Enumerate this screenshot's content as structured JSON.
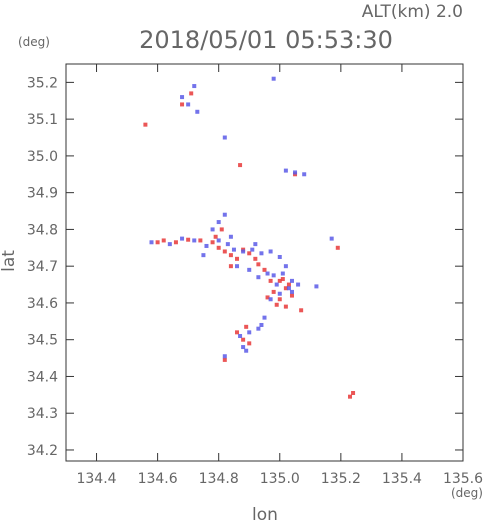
{
  "chart_data": {
    "type": "scatter",
    "title": "2018/05/01 05:53:30",
    "subtitle": "ALT(km) 2.0",
    "xlabel": "lon",
    "ylabel": "lat",
    "xunit": "(deg)",
    "yunit": "(deg)",
    "xlim": [
      134.3,
      135.6
    ],
    "ylim": [
      34.17,
      35.25
    ],
    "xticks": [
      "134.4",
      "134.6",
      "134.8",
      "135.0",
      "135.2",
      "135.4",
      "135.6"
    ],
    "yticks": [
      "34.2",
      "34.3",
      "34.4",
      "34.5",
      "34.6",
      "34.7",
      "34.8",
      "34.9",
      "35.0",
      "35.1",
      "35.2"
    ],
    "grid": false,
    "series": [
      {
        "color": "#e83838",
        "points": [
          [
            134.56,
            35.085
          ],
          [
            134.87,
            34.975
          ],
          [
            135.19,
            34.75
          ],
          [
            135.23,
            34.345
          ],
          [
            135.24,
            34.355
          ],
          [
            134.6,
            34.765
          ],
          [
            134.62,
            34.77
          ],
          [
            134.66,
            34.765
          ],
          [
            134.7,
            34.772
          ],
          [
            134.78,
            34.765
          ],
          [
            134.8,
            34.75
          ],
          [
            134.82,
            34.74
          ],
          [
            134.84,
            34.73
          ],
          [
            134.86,
            34.72
          ],
          [
            134.88,
            34.745
          ],
          [
            134.9,
            34.735
          ],
          [
            134.93,
            34.705
          ],
          [
            134.95,
            34.69
          ],
          [
            134.97,
            34.66
          ],
          [
            135.0,
            34.66
          ],
          [
            135.02,
            34.64
          ],
          [
            135.04,
            34.62
          ],
          [
            135.0,
            34.61
          ],
          [
            135.02,
            34.59
          ],
          [
            134.96,
            34.615
          ],
          [
            135.03,
            34.65
          ],
          [
            134.88,
            34.5
          ],
          [
            134.9,
            34.49
          ],
          [
            134.86,
            34.52
          ],
          [
            134.82,
            34.445
          ],
          [
            135.07,
            34.58
          ],
          [
            134.99,
            34.595
          ],
          [
            135.05,
            34.95
          ],
          [
            134.68,
            35.14
          ],
          [
            134.71,
            35.17
          ],
          [
            134.84,
            34.7
          ],
          [
            134.92,
            34.72
          ],
          [
            134.79,
            34.78
          ],
          [
            134.81,
            34.8
          ],
          [
            134.74,
            34.77
          ],
          [
            135.01,
            34.665
          ],
          [
            134.98,
            34.63
          ],
          [
            134.89,
            34.535
          ]
        ]
      },
      {
        "color": "#5a5ae8",
        "points": [
          [
            134.72,
            35.19
          ],
          [
            134.68,
            35.16
          ],
          [
            134.7,
            35.14
          ],
          [
            134.73,
            35.12
          ],
          [
            134.98,
            35.21
          ],
          [
            134.82,
            35.05
          ],
          [
            135.02,
            34.96
          ],
          [
            135.05,
            34.955
          ],
          [
            135.08,
            34.95
          ],
          [
            134.82,
            34.84
          ],
          [
            134.8,
            34.82
          ],
          [
            134.78,
            34.8
          ],
          [
            134.58,
            34.765
          ],
          [
            134.64,
            34.76
          ],
          [
            134.68,
            34.775
          ],
          [
            134.72,
            34.77
          ],
          [
            134.76,
            34.755
          ],
          [
            134.8,
            34.77
          ],
          [
            134.83,
            34.76
          ],
          [
            134.85,
            34.745
          ],
          [
            134.88,
            34.74
          ],
          [
            134.91,
            34.745
          ],
          [
            134.94,
            34.735
          ],
          [
            134.97,
            34.74
          ],
          [
            135.0,
            34.725
          ],
          [
            135.02,
            34.7
          ],
          [
            134.96,
            34.68
          ],
          [
            134.98,
            34.675
          ],
          [
            135.01,
            34.68
          ],
          [
            135.04,
            34.66
          ],
          [
            134.99,
            34.65
          ],
          [
            135.03,
            34.64
          ],
          [
            135.06,
            34.65
          ],
          [
            135.04,
            34.63
          ],
          [
            135.0,
            34.625
          ],
          [
            134.97,
            34.61
          ],
          [
            134.95,
            34.56
          ],
          [
            134.93,
            34.53
          ],
          [
            134.9,
            34.52
          ],
          [
            134.87,
            34.51
          ],
          [
            134.88,
            34.48
          ],
          [
            134.82,
            34.455
          ],
          [
            135.12,
            34.645
          ],
          [
            135.17,
            34.775
          ],
          [
            134.86,
            34.7
          ],
          [
            134.9,
            34.69
          ],
          [
            134.93,
            34.67
          ],
          [
            134.75,
            34.73
          ],
          [
            134.84,
            34.78
          ],
          [
            134.92,
            34.76
          ],
          [
            134.89,
            34.47
          ],
          [
            134.94,
            34.54
          ]
        ]
      }
    ]
  }
}
